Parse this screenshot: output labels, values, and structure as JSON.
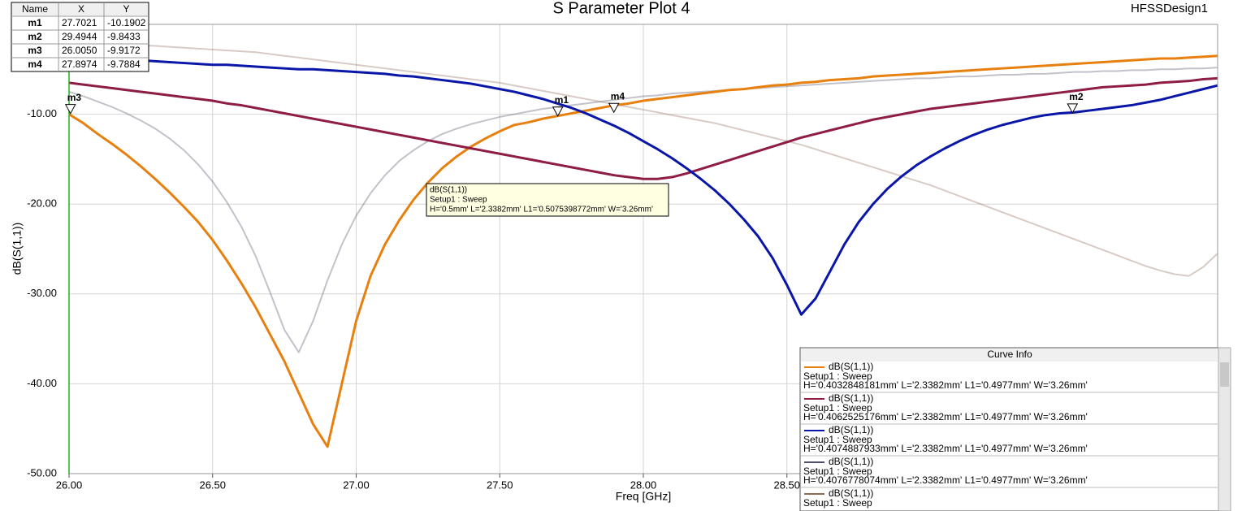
{
  "chart_data": {
    "type": "line",
    "title": "S Parameter Plot 4",
    "design": "HFSSDesign1",
    "x_label": "Freq [GHz]",
    "y_label": "dB(S(1,1))",
    "xlim": [
      26,
      30
    ],
    "ylim": [
      -50,
      0
    ],
    "xticks": [
      {
        "value": 26,
        "label": "26.00"
      },
      {
        "value": 26.5,
        "label": "26.50"
      },
      {
        "value": 27,
        "label": "27.00"
      },
      {
        "value": 27.5,
        "label": "27.50"
      },
      {
        "value": 28,
        "label": "28.00"
      },
      {
        "value": 28.5,
        "label": "28.50"
      }
    ],
    "yticks": [
      {
        "value": -10,
        "label": "-10.00"
      },
      {
        "value": -20,
        "label": "-20.00"
      },
      {
        "value": -30,
        "label": "-30.00"
      },
      {
        "value": -40,
        "label": "-40.00"
      },
      {
        "value": -50,
        "label": "-50.00"
      }
    ],
    "grid": true,
    "legend_title": "Curve Info",
    "x": [
      26,
      26.05,
      26.1,
      26.15,
      26.2,
      26.25,
      26.3,
      26.35,
      26.4,
      26.45,
      26.5,
      26.55,
      26.6,
      26.65,
      26.7,
      26.75,
      26.8,
      26.85,
      26.9,
      26.95,
      27,
      27.05,
      27.1,
      27.15,
      27.2,
      27.25,
      27.3,
      27.35,
      27.4,
      27.45,
      27.5,
      27.55,
      27.6,
      27.65,
      27.7,
      27.75,
      27.8,
      27.85,
      27.9,
      27.95,
      28,
      28.05,
      28.1,
      28.15,
      28.2,
      28.25,
      28.3,
      28.35,
      28.4,
      28.45,
      28.5,
      28.55,
      28.6,
      28.65,
      28.7,
      28.75,
      28.8,
      28.85,
      28.9,
      28.95,
      29,
      29.05,
      29.1,
      29.15,
      29.2,
      29.25,
      29.3,
      29.35,
      29.4,
      29.45,
      29.5,
      29.55,
      29.6,
      29.65,
      29.7,
      29.75,
      29.8,
      29.85,
      29.9,
      29.95,
      30
    ],
    "series": [
      {
        "name": "dB(S(1,1))",
        "setup": "Setup1 : Sweep",
        "params": "H='0.4032848181mm' L='2.3382mm' L1='0.4977mm' W='3.26mm'",
        "color": "#e8800f",
        "values": [
          -10.0,
          -11.0,
          -12.2,
          -13.3,
          -14.5,
          -15.8,
          -17.2,
          -18.7,
          -20.3,
          -22.0,
          -24.0,
          -26.3,
          -28.8,
          -31.5,
          -34.5,
          -37.5,
          -41.0,
          -44.5,
          -47.0,
          -40.0,
          -33.0,
          -28.0,
          -24.5,
          -21.8,
          -19.5,
          -17.6,
          -16.0,
          -14.7,
          -13.6,
          -12.7,
          -11.9,
          -11.2,
          -10.9,
          -10.5,
          -10.2,
          -9.9,
          -9.6,
          -9.3,
          -9.0,
          -8.8,
          -8.5,
          -8.3,
          -8.1,
          -7.9,
          -7.7,
          -7.5,
          -7.3,
          -7.2,
          -7.0,
          -6.8,
          -6.7,
          -6.5,
          -6.4,
          -6.2,
          -6.1,
          -6.0,
          -5.8,
          -5.7,
          -5.6,
          -5.5,
          -5.4,
          -5.3,
          -5.2,
          -5.1,
          -5.0,
          -4.9,
          -4.8,
          -4.7,
          -4.6,
          -4.5,
          -4.4,
          -4.3,
          -4.2,
          -4.1,
          -4.0,
          -3.9,
          -3.8,
          -3.8,
          -3.7,
          -3.6,
          -3.5
        ]
      },
      {
        "name": "dB(S(1,1))",
        "setup": "Setup1 : Sweep",
        "params": "H='0.4062525176mm' L='2.3382mm' L1='0.4977mm' W='3.26mm'",
        "color": "#8e1c45",
        "values": [
          -6.5,
          -6.7,
          -6.9,
          -7.1,
          -7.3,
          -7.5,
          -7.7,
          -7.9,
          -8.1,
          -8.3,
          -8.5,
          -8.8,
          -9.0,
          -9.3,
          -9.6,
          -9.9,
          -10.2,
          -10.5,
          -10.8,
          -11.1,
          -11.4,
          -11.7,
          -12.0,
          -12.3,
          -12.6,
          -12.9,
          -13.2,
          -13.5,
          -13.8,
          -14.1,
          -14.4,
          -14.7,
          -15.0,
          -15.3,
          -15.6,
          -15.9,
          -16.2,
          -16.5,
          -16.8,
          -17.0,
          -17.2,
          -17.2,
          -17.0,
          -16.6,
          -16.1,
          -15.6,
          -15.1,
          -14.6,
          -14.1,
          -13.6,
          -13.1,
          -12.6,
          -12.2,
          -11.8,
          -11.4,
          -11.0,
          -10.6,
          -10.3,
          -10.0,
          -9.7,
          -9.4,
          -9.2,
          -9.0,
          -8.8,
          -8.6,
          -8.4,
          -8.2,
          -8.0,
          -7.8,
          -7.6,
          -7.4,
          -7.2,
          -7.0,
          -6.9,
          -6.8,
          -6.7,
          -6.5,
          -6.4,
          -6.3,
          -6.1,
          -6.0
        ]
      },
      {
        "name": "dB(S(1,1))",
        "setup": "Setup1 : Sweep",
        "params": "H='0.4074887933mm' L='2.3382mm' L1='0.4977mm' W='3.26mm'",
        "color": "#0a16a8",
        "values": [
          -3.6,
          -3.7,
          -3.8,
          -3.8,
          -3.9,
          -4.0,
          -4.1,
          -4.2,
          -4.3,
          -4.4,
          -4.5,
          -4.5,
          -4.6,
          -4.7,
          -4.8,
          -4.9,
          -5.0,
          -5.0,
          -5.1,
          -5.2,
          -5.3,
          -5.4,
          -5.5,
          -5.7,
          -5.8,
          -6.0,
          -6.2,
          -6.4,
          -6.6,
          -6.9,
          -7.2,
          -7.5,
          -7.9,
          -8.3,
          -8.8,
          -9.3,
          -9.9,
          -10.6,
          -11.3,
          -12.1,
          -13.0,
          -13.9,
          -14.9,
          -16.0,
          -17.2,
          -18.5,
          -20.0,
          -21.7,
          -23.6,
          -26.0,
          -29.0,
          -32.3,
          -30.5,
          -27.5,
          -24.5,
          -22.0,
          -20.0,
          -18.3,
          -16.9,
          -15.7,
          -14.7,
          -13.8,
          -13.0,
          -12.3,
          -11.7,
          -11.2,
          -10.8,
          -10.4,
          -10.1,
          -9.9,
          -9.8,
          -9.6,
          -9.4,
          -9.2,
          -9.0,
          -8.7,
          -8.4,
          -8.0,
          -7.6,
          -7.2,
          -6.8
        ]
      },
      {
        "name": "dB(S(1,1))",
        "setup": "Setup1 : Sweep",
        "params": "H='0.4076778074mm' L='2.3382mm' L1='0.4977mm' W='3.26mm'",
        "color": "#4f4f68",
        "opacity": 0.35,
        "values": [
          -7.5,
          -8.0,
          -8.6,
          -9.2,
          -9.9,
          -10.7,
          -11.6,
          -12.7,
          -14.0,
          -15.6,
          -17.5,
          -19.8,
          -22.5,
          -25.8,
          -29.8,
          -34.0,
          -36.5,
          -33.0,
          -28.5,
          -24.5,
          -21.3,
          -18.8,
          -16.8,
          -15.2,
          -14.0,
          -13.0,
          -12.2,
          -11.6,
          -11.1,
          -10.7,
          -10.3,
          -10.0,
          -9.7,
          -9.4,
          -9.2,
          -9.0,
          -8.8,
          -8.6,
          -8.4,
          -8.2,
          -8.0,
          -7.9,
          -7.7,
          -7.6,
          -7.5,
          -7.4,
          -7.3,
          -7.2,
          -7.1,
          -7.0,
          -6.9,
          -6.8,
          -6.7,
          -6.6,
          -6.5,
          -6.4,
          -6.3,
          -6.2,
          -6.1,
          -6.0,
          -6.0,
          -5.9,
          -5.8,
          -5.8,
          -5.7,
          -5.6,
          -5.6,
          -5.5,
          -5.5,
          -5.4,
          -5.3,
          -5.3,
          -5.2,
          -5.2,
          -5.1,
          -5.1,
          -5.0,
          -5.0,
          -4.9,
          -4.9,
          -4.8
        ]
      },
      {
        "name": "dB(S(1,1))",
        "setup": "Setup1 : Sweep",
        "color": "#8e6a5a",
        "opacity": 0.35,
        "values": [
          -1.8,
          -1.9,
          -2.0,
          -2.1,
          -2.2,
          -2.3,
          -2.4,
          -2.5,
          -2.6,
          -2.7,
          -2.8,
          -2.9,
          -3.0,
          -3.1,
          -3.3,
          -3.5,
          -3.7,
          -3.9,
          -4.1,
          -4.3,
          -4.5,
          -4.7,
          -4.9,
          -5.1,
          -5.3,
          -5.5,
          -5.7,
          -5.9,
          -6.1,
          -6.3,
          -6.5,
          -6.8,
          -7.1,
          -7.4,
          -7.7,
          -8.0,
          -8.3,
          -8.6,
          -8.9,
          -9.2,
          -9.5,
          -9.8,
          -10.1,
          -10.4,
          -10.7,
          -11.0,
          -11.4,
          -11.8,
          -12.2,
          -12.6,
          -13.0,
          -13.4,
          -13.9,
          -14.4,
          -14.9,
          -15.4,
          -15.9,
          -16.4,
          -16.9,
          -17.4,
          -17.9,
          -18.5,
          -19.1,
          -19.7,
          -20.3,
          -20.9,
          -21.5,
          -22.1,
          -22.7,
          -23.3,
          -23.9,
          -24.5,
          -25.1,
          -25.7,
          -26.3,
          -26.9,
          -27.4,
          -27.8,
          -28.0,
          -27.0,
          -25.5
        ]
      }
    ],
    "marker_table_header": [
      "Name",
      "X",
      "Y"
    ],
    "markers": [
      {
        "name": "m1",
        "x": 27.7021,
        "y": -10.1902
      },
      {
        "name": "m2",
        "x": 29.4944,
        "y": -9.8433
      },
      {
        "name": "m3",
        "x": {
          "value": 26.005,
          "label": "26.0050"
        },
        "y": -9.9172
      },
      {
        "name": "m4",
        "x": 27.8974,
        "y": -9.7884
      }
    ],
    "tooltip": [
      "dB(S(1,1))",
      "Setup1 : Sweep",
      "H='0.5mm' L='2.3382mm' L1='0.5075398772mm' W='3.26mm'"
    ]
  }
}
